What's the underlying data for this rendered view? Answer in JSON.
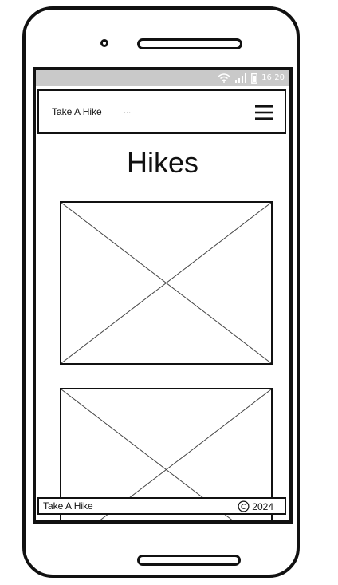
{
  "status_bar": {
    "time": "16:20",
    "icons": [
      "wifi-icon",
      "signal-icon",
      "battery-icon"
    ]
  },
  "header": {
    "brand": "Take A Hike",
    "menu_indicator": "...",
    "menu_icon": "hamburger-menu-icon"
  },
  "main": {
    "title": "Hikes",
    "images": [
      {
        "type": "placeholder-image"
      },
      {
        "type": "placeholder-image"
      }
    ]
  },
  "footer": {
    "brand": "Take A Hike",
    "copyright_icon": "copyright-icon",
    "year": "2024"
  },
  "colors": {
    "status_bar": "#c9c9c9",
    "stroke": "#111111",
    "background": "#ffffff"
  }
}
